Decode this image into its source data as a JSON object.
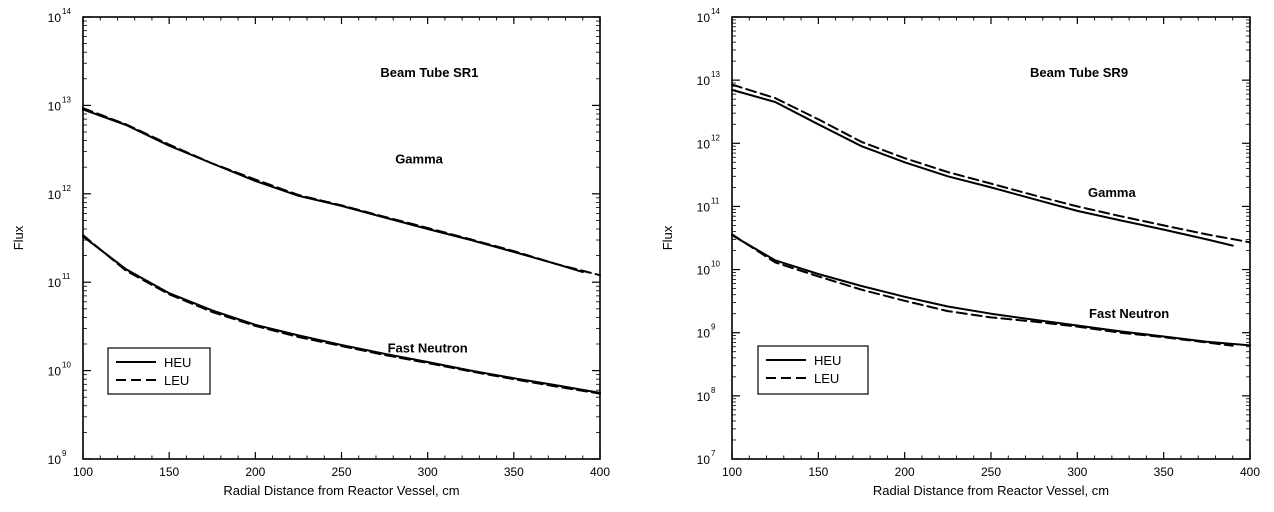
{
  "chart_data": [
    {
      "type": "line",
      "y_scale": "log",
      "title": "Beam Tube SR1",
      "xlabel": "Radial Distance from Reactor Vessel, cm",
      "ylabel": "Flux",
      "xlim": [
        100,
        400
      ],
      "ylim": [
        1000000000.0,
        100000000000000.0
      ],
      "xticks": [
        "100",
        "150",
        "200",
        "250",
        "300",
        "350",
        "400"
      ],
      "yticks": [
        {
          "value": 1000000000.0,
          "base": "10",
          "exp": "9"
        },
        {
          "value": 10000000000.0,
          "base": "10",
          "exp": "10"
        },
        {
          "value": 100000000000.0,
          "base": "10",
          "exp": "11"
        },
        {
          "value": 1000000000000.0,
          "base": "10",
          "exp": "12"
        },
        {
          "value": 10000000000000.0,
          "base": "10",
          "exp": "13"
        },
        {
          "value": 100000000000000.0,
          "base": "10",
          "exp": "14"
        }
      ],
      "legend": {
        "placement": "bottom-left",
        "entries": [
          "HEU",
          "LEU"
        ]
      },
      "annotations": [
        {
          "text": "Gamma",
          "x": 295,
          "y": 2200000000000.0
        },
        {
          "text": "Fast Neutron",
          "x": 300,
          "y": 16000000000.0
        }
      ],
      "series": [
        {
          "name": "HEU",
          "group": "Gamma",
          "style": "solid",
          "x": [
            100,
            125,
            150,
            175,
            200,
            225,
            250,
            275,
            300,
            325,
            350,
            375,
            390
          ],
          "y": [
            9000000000000.0,
            6000000000000.0,
            3500000000000.0,
            2200000000000.0,
            1400000000000.0,
            950000000000.0,
            730000000000.0,
            540000000000.0,
            400000000000.0,
            300000000000.0,
            220000000000.0,
            160000000000.0,
            130000000000.0
          ]
        },
        {
          "name": "LEU",
          "group": "Gamma",
          "style": "dashed",
          "x": [
            100,
            125,
            150,
            175,
            200,
            225,
            250,
            275,
            300,
            325,
            350,
            375,
            400
          ],
          "y": [
            9300000000000.0,
            6100000000000.0,
            3600000000000.0,
            2200000000000.0,
            1450000000000.0,
            970000000000.0,
            740000000000.0,
            550000000000.0,
            410000000000.0,
            305000000000.0,
            225000000000.0,
            160000000000.0,
            120000000000.0
          ]
        },
        {
          "name": "HEU",
          "group": "Fast Neutron",
          "style": "solid",
          "x": [
            100,
            125,
            150,
            175,
            200,
            225,
            250,
            275,
            300,
            325,
            350,
            375,
            400
          ],
          "y": [
            330000000000.0,
            140000000000.0,
            75000000000.0,
            48000000000.0,
            33000000000.0,
            25000000000.0,
            19500000000.0,
            15500000000.0,
            12500000000.0,
            10000000000.0,
            8200000000.0,
            6800000000.0,
            5600000000.0
          ]
        },
        {
          "name": "LEU",
          "group": "Fast Neutron",
          "style": "dashed",
          "x": [
            100,
            125,
            150,
            175,
            200,
            225,
            250,
            275,
            300,
            325,
            350,
            375,
            400
          ],
          "y": [
            340000000000.0,
            135000000000.0,
            73000000000.0,
            46000000000.0,
            32000000000.0,
            24000000000.0,
            19000000000.0,
            15000000000.0,
            12200000000.0,
            9800000000.0,
            8000000000.0,
            6600000000.0,
            5500000000.0
          ]
        }
      ]
    },
    {
      "type": "line",
      "y_scale": "log",
      "title": "Beam Tube SR9",
      "xlabel": "Radial Distance from Reactor Vessel, cm",
      "ylabel": "Flux",
      "xlim": [
        100,
        400
      ],
      "ylim": [
        10000000.0,
        100000000000000.0
      ],
      "xticks": [
        "100",
        "150",
        "200",
        "250",
        "300",
        "350",
        "400"
      ],
      "yticks": [
        {
          "value": 10000000.0,
          "base": "10",
          "exp": "7"
        },
        {
          "value": 100000000.0,
          "base": "10",
          "exp": "8"
        },
        {
          "value": 1000000000.0,
          "base": "10",
          "exp": "9"
        },
        {
          "value": 10000000000.0,
          "base": "10",
          "exp": "10"
        },
        {
          "value": 100000000000.0,
          "base": "10",
          "exp": "11"
        },
        {
          "value": 1000000000000.0,
          "base": "10",
          "exp": "12"
        },
        {
          "value": 10000000000000.0,
          "base": "10",
          "exp": "13"
        },
        {
          "value": 100000000000000.0,
          "base": "10",
          "exp": "14"
        }
      ],
      "legend": {
        "placement": "bottom-left",
        "entries": [
          "HEU",
          "LEU"
        ]
      },
      "annotations": [
        {
          "text": "Gamma",
          "x": 320,
          "y": 140000000000.0
        },
        {
          "text": "Fast Neutron",
          "x": 330,
          "y": 1700000000.0
        }
      ],
      "series": [
        {
          "name": "HEU",
          "group": "Gamma",
          "style": "solid",
          "x": [
            100,
            125,
            150,
            175,
            200,
            225,
            250,
            275,
            300,
            325,
            350,
            375,
            390
          ],
          "y": [
            7000000000000.0,
            4500000000000.0,
            2000000000000.0,
            900000000000.0,
            500000000000.0,
            300000000000.0,
            200000000000.0,
            130000000000.0,
            85000000000.0,
            60000000000.0,
            43000000000.0,
            30000000000.0,
            24000000000.0
          ]
        },
        {
          "name": "LEU",
          "group": "Gamma",
          "style": "dashed",
          "x": [
            100,
            125,
            150,
            175,
            200,
            225,
            250,
            275,
            300,
            325,
            350,
            375,
            400
          ],
          "y": [
            8500000000000.0,
            5200000000000.0,
            2400000000000.0,
            1050000000000.0,
            580000000000.0,
            350000000000.0,
            230000000000.0,
            150000000000.0,
            100000000000.0,
            70000000000.0,
            50000000000.0,
            36000000000.0,
            27000000000.0
          ]
        },
        {
          "name": "HEU",
          "group": "Fast Neutron",
          "style": "solid",
          "x": [
            100,
            125,
            150,
            175,
            200,
            225,
            250,
            275,
            300,
            325,
            350,
            375,
            400
          ],
          "y": [
            35000000000.0,
            14000000000.0,
            8500000000.0,
            5500000000.0,
            3700000000.0,
            2600000000.0,
            2000000000.0,
            1600000000.0,
            1300000000.0,
            1050000000.0,
            870000000.0,
            720000000.0,
            630000000.0
          ]
        },
        {
          "name": "LEU",
          "group": "Fast Neutron",
          "style": "dashed",
          "x": [
            100,
            125,
            150,
            175,
            200,
            225,
            250,
            275,
            300,
            325,
            350,
            375,
            390
          ],
          "y": [
            36000000000.0,
            13000000000.0,
            7800000000.0,
            4800000000.0,
            3200000000.0,
            2200000000.0,
            1750000000.0,
            1500000000.0,
            1250000000.0,
            1000000000.0,
            850000000.0,
            700000000.0,
            620000000.0
          ]
        }
      ]
    }
  ]
}
